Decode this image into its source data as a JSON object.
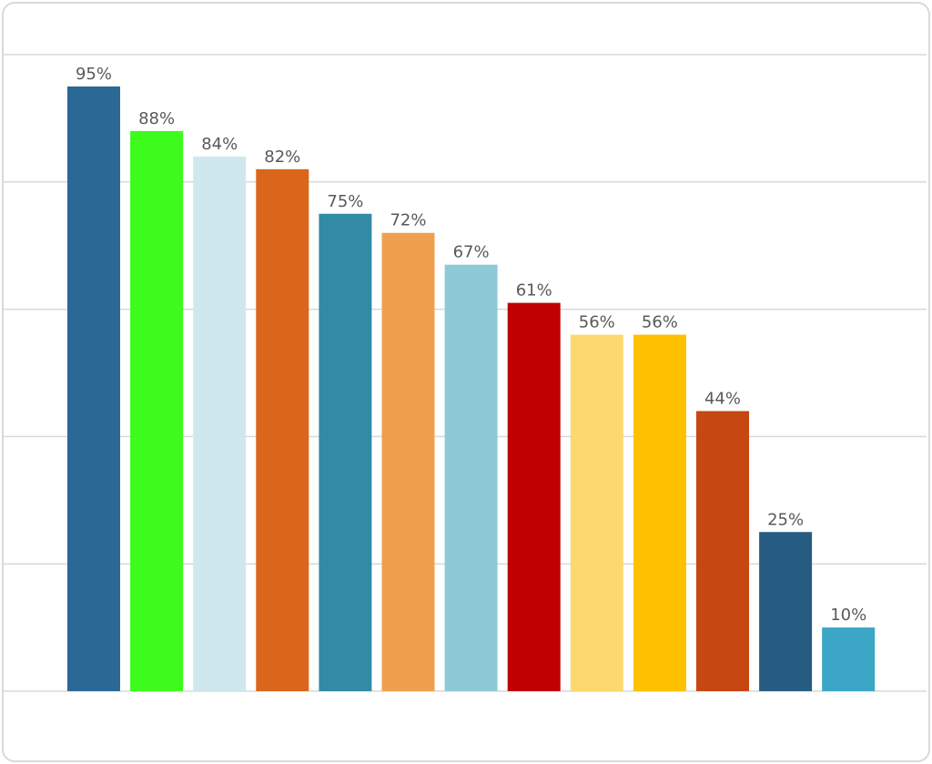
{
  "chart_data": {
    "type": "bar",
    "title": "",
    "xlabel": "",
    "ylabel": "",
    "ylim": [
      0,
      100
    ],
    "gridlines": [
      0,
      20,
      40,
      60,
      80,
      100
    ],
    "grid": true,
    "legend": "none",
    "values": [
      95,
      88,
      84,
      82,
      75,
      72,
      67,
      61,
      56,
      56,
      44,
      25,
      10
    ],
    "labels": [
      "95%",
      "88%",
      "84%",
      "82%",
      "75%",
      "72%",
      "67%",
      "61%",
      "56%",
      "56%",
      "44%",
      "25%",
      "10%"
    ],
    "colors": [
      "#2b6896",
      "#3dfb1c",
      "#cfe8ee",
      "#d9661b",
      "#328ba6",
      "#efa04e",
      "#8ccbd6",
      "#c00000",
      "#fdd86e",
      "#ffc000",
      "#c64711",
      "#265c82",
      "#3ba6c5"
    ]
  }
}
